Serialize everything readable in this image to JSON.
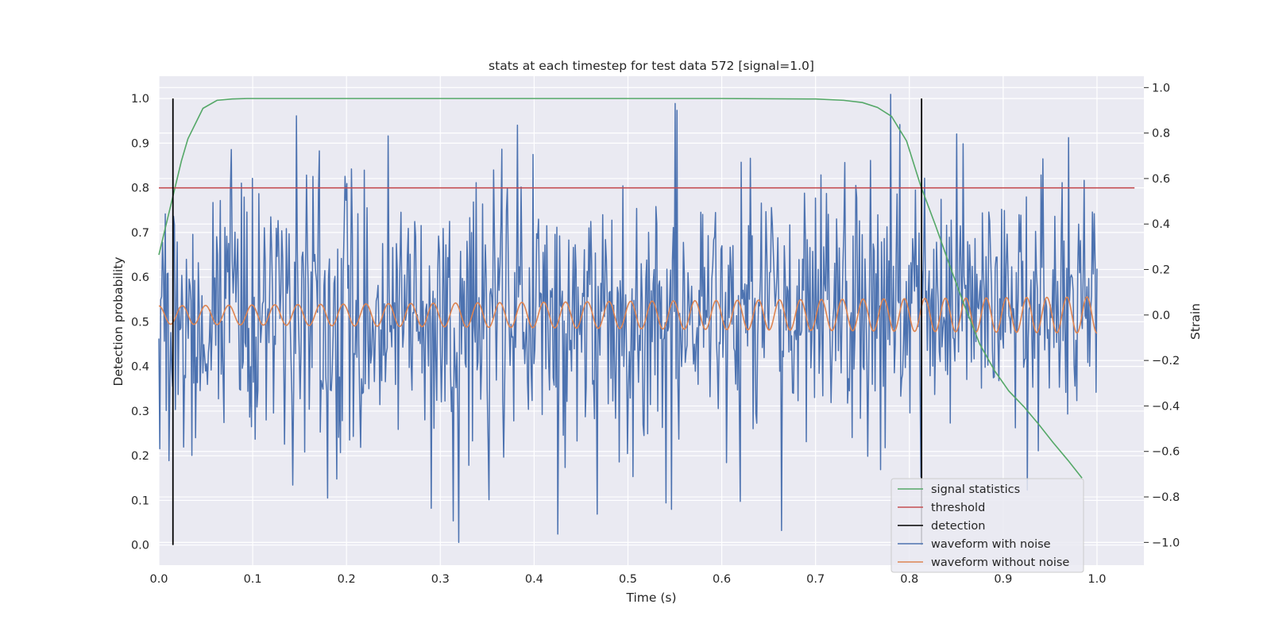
{
  "chart_data": {
    "type": "line",
    "title": "stats at each timestep for test data 572 [signal=1.0]",
    "xlabel": "Time (s)",
    "ylabel": "Detection probability",
    "ylabel_right": "Strain",
    "xlim": [
      0.0,
      1.05
    ],
    "ylim": [
      -0.045,
      1.05
    ],
    "ylim_right": [
      -1.1,
      1.05
    ],
    "x_ticks": [
      "0.0",
      "0.1",
      "0.2",
      "0.3",
      "0.4",
      "0.5",
      "0.6",
      "0.7",
      "0.8",
      "0.9",
      "1.0"
    ],
    "y_ticks": [
      "0.0",
      "0.1",
      "0.2",
      "0.3",
      "0.4",
      "0.5",
      "0.6",
      "0.7",
      "0.8",
      "0.9",
      "1.0"
    ],
    "y_ticks_right": [
      "−1.0",
      "−0.8",
      "−0.6",
      "−0.4",
      "−0.2",
      "0.0",
      "0.2",
      "0.4",
      "0.6",
      "0.8",
      "1.0"
    ],
    "grid": true,
    "legend_position": "lower-right",
    "colors": {
      "signal_statistics": "#55a868",
      "threshold": "#c44e52",
      "detection": "#000000",
      "waveform_with_noise": "#4c72b0",
      "waveform_without_noise": "#dd8452",
      "background": "#eaeaf2",
      "grid": "#ffffff"
    },
    "series": [
      {
        "name": "signal statistics",
        "axis": "left",
        "x": [
          0.0,
          0.008,
          0.016,
          0.024,
          0.031,
          0.047,
          0.062,
          0.078,
          0.094,
          0.2,
          0.4,
          0.6,
          0.7,
          0.73,
          0.75,
          0.766,
          0.781,
          0.797,
          0.812,
          0.828,
          0.844,
          0.859,
          0.875,
          0.891,
          0.906,
          0.922,
          0.938,
          0.953,
          0.969,
          0.984
        ],
        "values": [
          0.65,
          0.72,
          0.79,
          0.86,
          0.91,
          0.978,
          0.996,
          0.999,
          1.0,
          1.0,
          1.0,
          1.0,
          0.999,
          0.996,
          0.991,
          0.98,
          0.96,
          0.905,
          0.805,
          0.715,
          0.62,
          0.535,
          0.45,
          0.39,
          0.345,
          0.31,
          0.27,
          0.23,
          0.19,
          0.15
        ]
      },
      {
        "name": "threshold",
        "axis": "left",
        "x": [
          0.0,
          1.04
        ],
        "values": [
          0.8,
          0.8
        ]
      },
      {
        "name": "detection",
        "axis": "left",
        "x_positions": [
          0.015,
          0.813
        ],
        "range": [
          0.0,
          1.0
        ]
      },
      {
        "name": "waveform with noise",
        "axis": "right",
        "x_start": 0.0,
        "x_end": 1.0,
        "samples": 1024,
        "approx_std": 0.3,
        "notable_points": [
          {
            "x": 0.55,
            "y": 0.93
          },
          {
            "x": 0.32,
            "y": -1.0
          },
          {
            "x": 0.29,
            "y": -0.85
          },
          {
            "x": 0.62,
            "y": -0.82
          },
          {
            "x": 0.97,
            "y": 0.78
          },
          {
            "x": 0.78,
            "y": 0.97
          }
        ]
      },
      {
        "name": "waveform without noise",
        "axis": "right",
        "x_start": 0.0,
        "x_end": 1.0,
        "amplitude_start": 0.04,
        "amplitude_end": 0.08,
        "frequency_start_hz": 40,
        "frequency_end_hz": 47
      }
    ]
  }
}
